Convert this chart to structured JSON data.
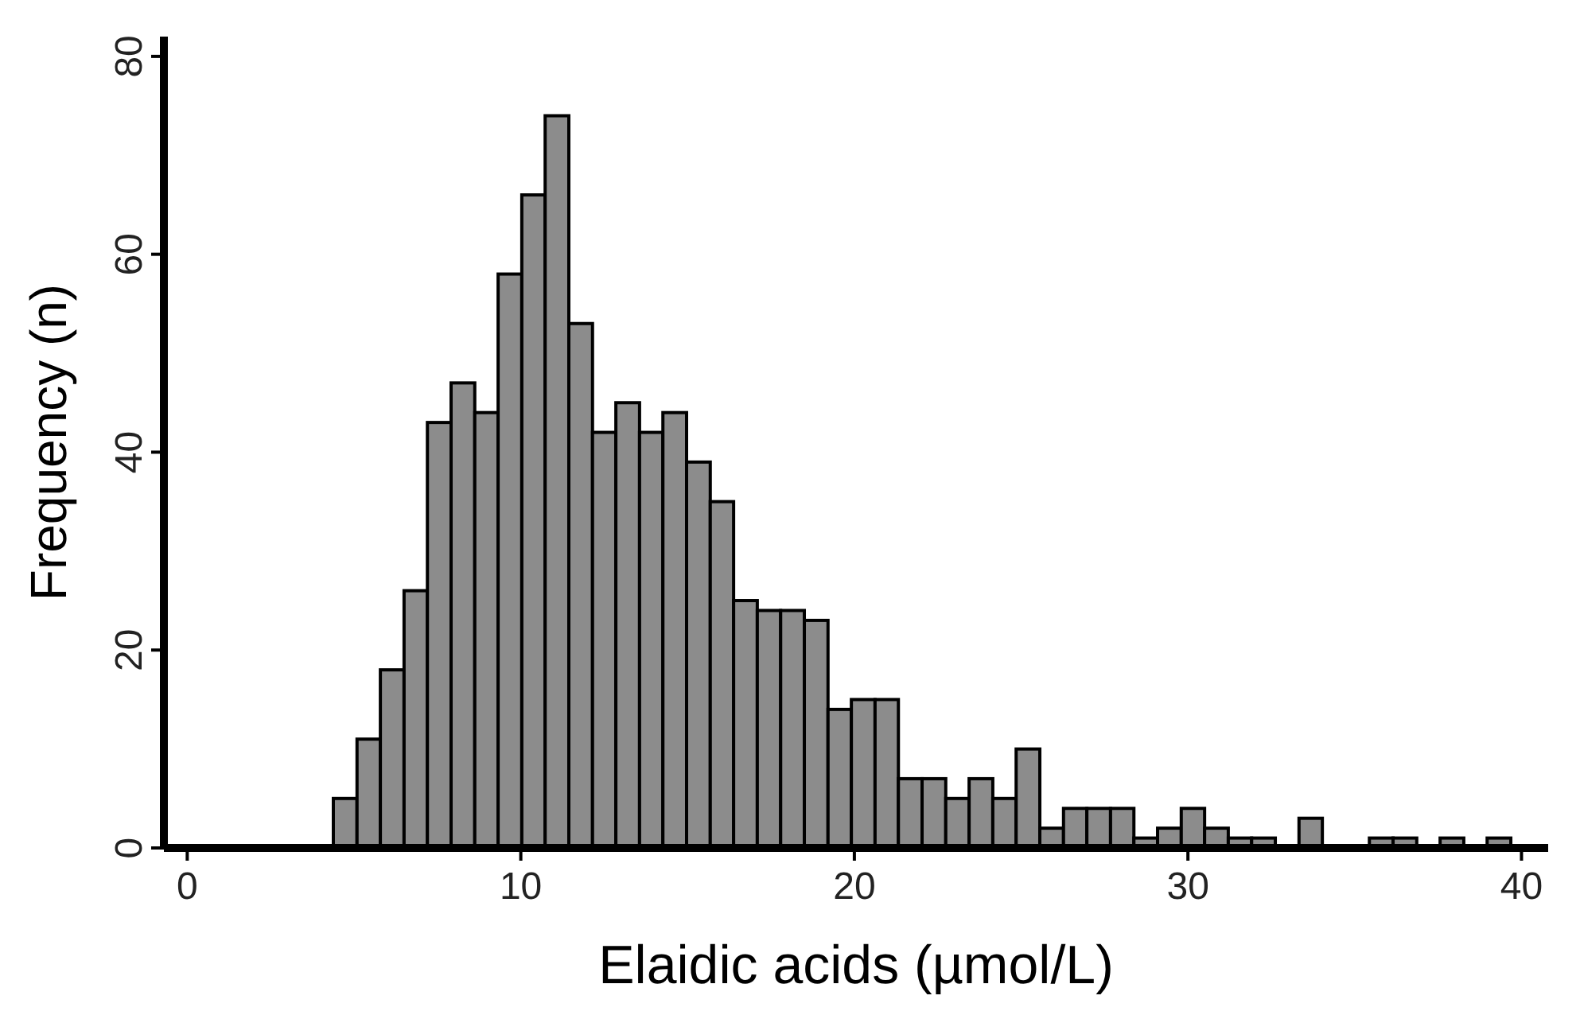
{
  "chart_data": {
    "type": "histogram",
    "xlabel": "Elaidic acids (µmol/L)",
    "ylabel": "Frequency (n)",
    "bins": [
      4.38,
      5.09,
      5.79,
      6.5,
      7.2,
      7.91,
      8.62,
      9.32,
      10.03,
      10.73,
      11.44,
      12.15,
      12.85,
      13.56,
      14.26,
      14.97,
      15.68,
      16.38,
      17.09,
      17.79,
      18.5,
      19.21,
      19.91,
      20.62,
      21.32,
      22.03,
      22.74,
      23.44,
      24.15,
      24.85,
      25.56,
      26.27,
      26.97,
      27.68,
      28.38,
      29.09,
      29.8,
      30.5,
      31.21,
      31.91,
      32.62,
      33.33,
      34.03,
      34.74,
      35.44,
      36.15,
      36.86,
      37.56,
      38.27,
      38.97,
      39.68
    ],
    "values": [
      5,
      11,
      18,
      26,
      43,
      47,
      44,
      58,
      66,
      74,
      53,
      42,
      45,
      42,
      44,
      39,
      35,
      25,
      24,
      24,
      23,
      14,
      15,
      15,
      7,
      7,
      5,
      7,
      5,
      10,
      2,
      4,
      4,
      4,
      1,
      2,
      4,
      2,
      1,
      1,
      0,
      3,
      0,
      0,
      1,
      1,
      0,
      1,
      0,
      1
    ],
    "color": "#8c8c8c",
    "xlim": [
      -0.7,
      40.8
    ],
    "xticks": [
      0,
      10,
      20,
      30,
      40
    ],
    "ylim": [
      0,
      82
    ],
    "yticks": [
      0,
      20,
      40,
      60,
      80
    ],
    "grid": false
  }
}
